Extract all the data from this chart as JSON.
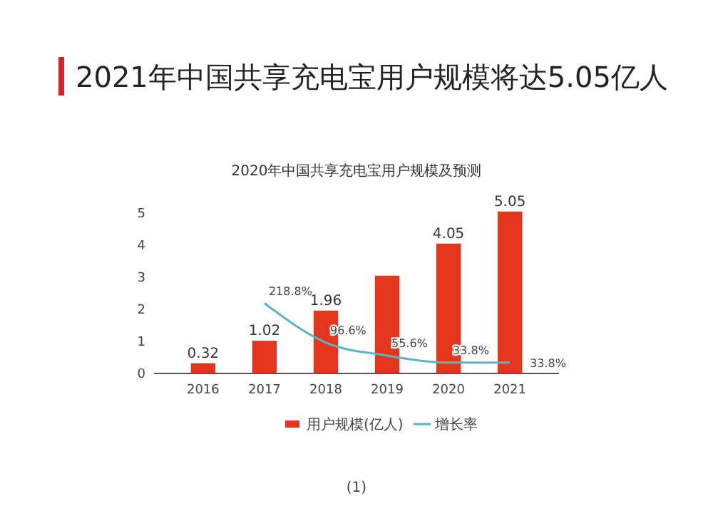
{
  "chart_data": {
    "type": "bar",
    "title": "2021年中国共享充电宝用户规模将达5.05亿人",
    "subtitle": "2020年中国共享充电宝用户规模及预测",
    "categories": [
      "2016",
      "2017",
      "2018",
      "2019",
      "2020",
      "2021"
    ],
    "series": [
      {
        "name": "用户规模(亿人)",
        "color": "#e3361c",
        "values": [
          0.32,
          1.02,
          1.96,
          3.05,
          4.05,
          5.05
        ],
        "value_labels": [
          "0.32",
          "1.02",
          "1.96",
          null,
          "4.05",
          "5.05"
        ]
      },
      {
        "name": "增长率",
        "type": "line",
        "axis": "y2",
        "color": "#5bb5c0",
        "values": [
          null,
          218.8,
          96.6,
          55.6,
          33.8,
          33.8
        ],
        "value_labels": [
          null,
          "218.8%",
          "96.6%",
          "55.6%",
          "33.8%",
          "33.8%"
        ]
      }
    ],
    "ylim": [
      0,
      5.2
    ],
    "yticks": [
      0,
      1,
      2,
      3,
      4,
      5
    ],
    "y2lim": [
      0,
      520
    ],
    "grid": false,
    "legend": "bottom",
    "marker": "none",
    "annotations": [
      "(1)"
    ]
  }
}
